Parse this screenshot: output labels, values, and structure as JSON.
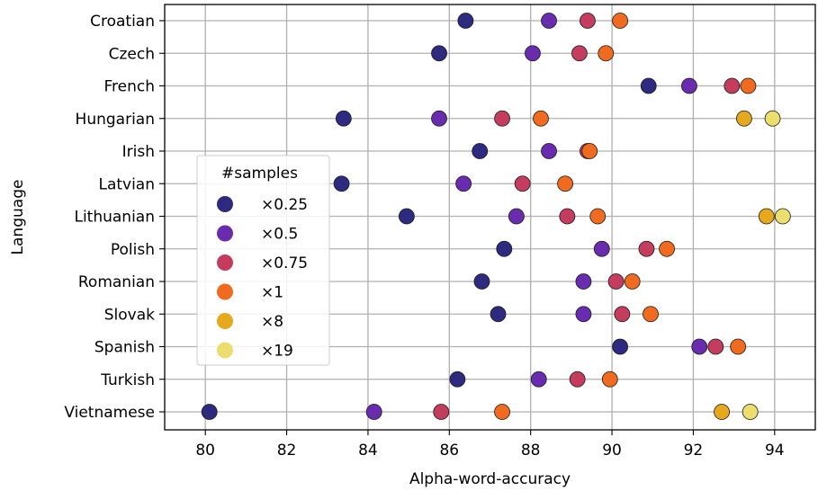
{
  "chart_data": {
    "type": "scatter",
    "xlabel": "Alpha-word-accuracy",
    "ylabel": "Language",
    "xlim": [
      79,
      95
    ],
    "xticks": [
      80,
      82,
      84,
      86,
      88,
      90,
      92,
      94
    ],
    "grid": true,
    "categories": [
      "Croatian",
      "Czech",
      "French",
      "Hungarian",
      "Irish",
      "Latvian",
      "Lithuanian",
      "Polish",
      "Romanian",
      "Slovak",
      "Spanish",
      "Turkish",
      "Vietnamese"
    ],
    "legend": {
      "title": "#samples",
      "placement": "center-left"
    },
    "series": [
      {
        "name": "×0.25",
        "color": "#2e2a7f",
        "values": [
          86.4,
          85.75,
          90.9,
          83.4,
          86.75,
          83.35,
          84.95,
          87.35,
          86.8,
          87.2,
          90.2,
          86.2,
          80.1
        ]
      },
      {
        "name": "×0.5",
        "color": "#6a2cae",
        "values": [
          88.45,
          88.05,
          91.9,
          85.75,
          88.45,
          86.35,
          87.65,
          89.75,
          89.3,
          89.3,
          92.15,
          88.2,
          84.15
        ]
      },
      {
        "name": "×0.75",
        "color": "#c43c5e",
        "values": [
          89.4,
          89.2,
          92.95,
          87.3,
          89.4,
          87.8,
          88.9,
          90.85,
          90.1,
          90.25,
          92.55,
          89.15,
          85.8
        ]
      },
      {
        "name": "×1",
        "color": "#f06a1f",
        "values": [
          90.2,
          89.85,
          93.35,
          88.25,
          89.45,
          88.85,
          89.65,
          91.35,
          90.5,
          90.95,
          93.1,
          89.95,
          87.3
        ]
      },
      {
        "name": "×8",
        "color": "#e6a81c",
        "values": [
          null,
          null,
          null,
          93.25,
          null,
          null,
          93.8,
          null,
          null,
          null,
          null,
          null,
          92.7
        ]
      },
      {
        "name": "×19",
        "color": "#ebdd6e",
        "values": [
          null,
          null,
          null,
          93.95,
          null,
          null,
          94.2,
          null,
          null,
          null,
          null,
          null,
          93.4
        ]
      }
    ]
  }
}
